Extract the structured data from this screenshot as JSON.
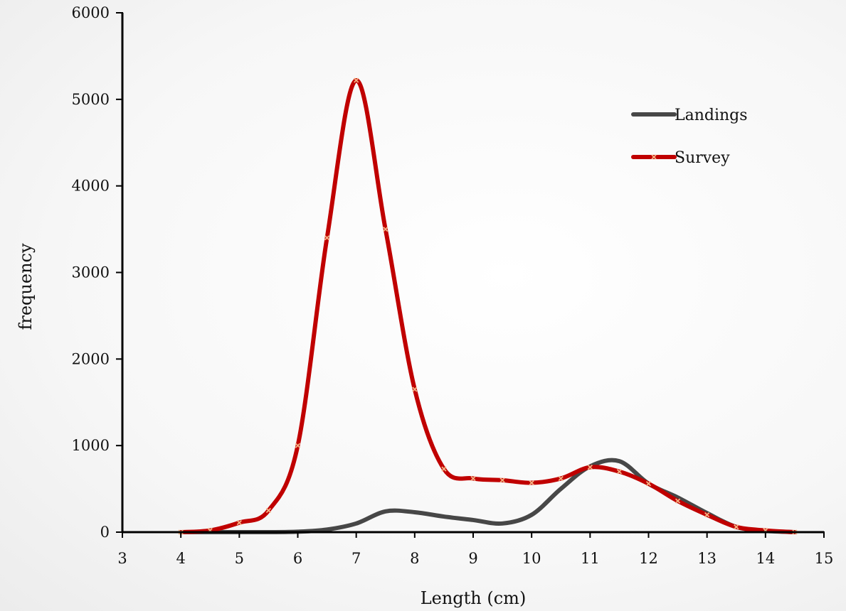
{
  "chart_data": {
    "type": "line",
    "title": "",
    "xlabel": "Length (cm)",
    "ylabel": "frequency",
    "xlim": [
      3,
      15
    ],
    "ylim": [
      0,
      6000
    ],
    "x_ticks": [
      "3",
      "4",
      "5",
      "6",
      "7",
      "8",
      "9",
      "10",
      "11",
      "12",
      "13",
      "14",
      "15"
    ],
    "y_ticks": [
      "0",
      "1000",
      "2000",
      "3000",
      "4000",
      "5000",
      "6000"
    ],
    "grid": false,
    "legend_position": "top-right",
    "series": [
      {
        "name": "Landings",
        "color": "#474747",
        "markers": false,
        "x": [
          4,
          4.5,
          5,
          5.5,
          6,
          6.5,
          7,
          7.5,
          8,
          8.5,
          9,
          9.5,
          10,
          10.5,
          11,
          11.5,
          12,
          12.5,
          13,
          13.5,
          14,
          14.5
        ],
        "values": [
          0,
          0,
          0,
          0,
          5,
          30,
          100,
          240,
          230,
          180,
          140,
          100,
          200,
          500,
          760,
          820,
          560,
          400,
          220,
          60,
          15,
          0
        ]
      },
      {
        "name": "Survey",
        "color": "#c00000",
        "markers": true,
        "marker_color": "#f4b183",
        "x": [
          4,
          4.5,
          5,
          5.5,
          6,
          6.5,
          7,
          7.5,
          8,
          8.5,
          9,
          9.5,
          10,
          10.5,
          11,
          11.5,
          12,
          12.5,
          13,
          13.5,
          14,
          14.5
        ],
        "values": [
          0,
          20,
          110,
          250,
          1000,
          3400,
          5220,
          3500,
          1650,
          730,
          620,
          600,
          570,
          620,
          750,
          700,
          560,
          360,
          200,
          60,
          20,
          0
        ]
      }
    ]
  }
}
